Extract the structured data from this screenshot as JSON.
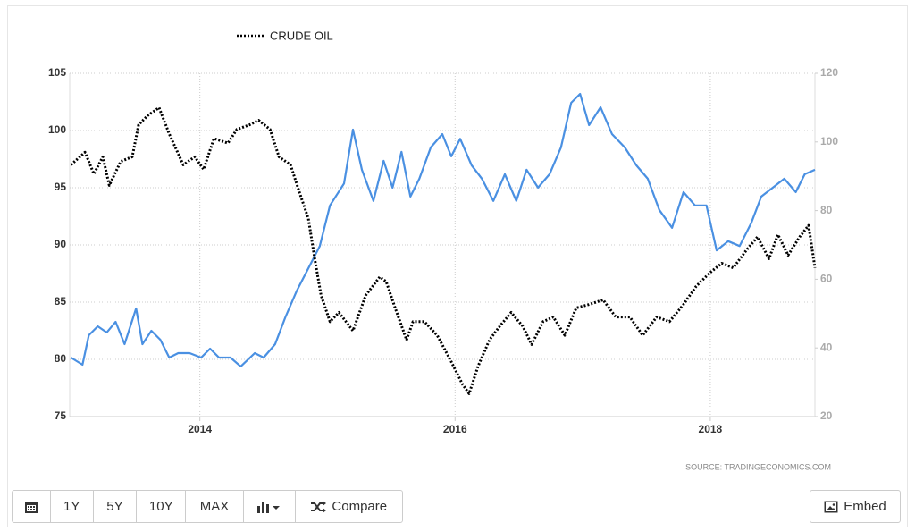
{
  "chart_data": {
    "type": "line",
    "source": "SOURCE: TRADINGECONOMICS.COM",
    "xlim": [
      2012.98,
      2018.82
    ],
    "xticks": [
      2014,
      2016,
      2018
    ],
    "ylim": [
      75,
      105
    ],
    "yticks": [
      75,
      80,
      85,
      90,
      95,
      100,
      105
    ],
    "y2lim": [
      20,
      120
    ],
    "y2ticks": [
      20,
      40,
      60,
      80,
      100,
      120
    ],
    "grid": true,
    "legend": "top",
    "series": [
      {
        "name": "CRUDE OIL",
        "color": "#000000",
        "style": "dotted",
        "x": [
          2012.99,
          2013.1,
          2013.17,
          2013.24,
          2013.29,
          2013.38,
          2013.47,
          2013.52,
          2013.59,
          2013.68,
          2013.76,
          2013.87,
          2013.96,
          2014.03,
          2014.11,
          2014.22,
          2014.29,
          2014.39,
          2014.46,
          2014.55,
          2014.62,
          2014.71,
          2014.78,
          2014.85,
          2014.9,
          2014.95,
          2015.02,
          2015.09,
          2015.2,
          2015.3,
          2015.41,
          2015.46,
          2015.53,
          2015.62,
          2015.67,
          2015.76,
          2015.86,
          2015.97,
          2016.06,
          2016.11,
          2016.18,
          2016.27,
          2016.35,
          2016.44,
          2016.53,
          2016.6,
          2016.69,
          2016.77,
          2016.86,
          2016.95,
          2017.05,
          2017.16,
          2017.26,
          2017.37,
          2017.47,
          2017.58,
          2017.68,
          2017.79,
          2017.89,
          2018.0,
          2018.09,
          2018.18,
          2018.28,
          2018.37,
          2018.46,
          2018.53,
          2018.61,
          2018.7,
          2018.77,
          2018.82
        ],
        "values": [
          97.0,
          98.1,
          96.2,
          97.7,
          95.2,
          97.3,
          97.7,
          100.5,
          101.3,
          102.0,
          99.7,
          97.0,
          97.7,
          96.6,
          99.3,
          98.9,
          100.1,
          100.5,
          100.9,
          100.1,
          97.7,
          97.0,
          94.6,
          92.3,
          88.8,
          85.6,
          83.3,
          84.1,
          82.5,
          85.6,
          87.2,
          86.8,
          84.5,
          81.7,
          83.3,
          83.3,
          82.1,
          79.8,
          77.8,
          77.0,
          79.4,
          81.7,
          82.9,
          84.1,
          82.9,
          81.3,
          83.3,
          83.7,
          82.1,
          84.5,
          84.8,
          85.2,
          83.7,
          83.7,
          82.1,
          83.7,
          83.3,
          84.8,
          86.4,
          87.6,
          88.4,
          88.0,
          89.5,
          90.7,
          88.8,
          90.9,
          89.1,
          90.7,
          91.7,
          88.0
        ]
      },
      {
        "color": "#4a90e2",
        "axis": "y2",
        "x": [
          2012.99,
          2013.08,
          2013.13,
          2013.2,
          2013.27,
          2013.34,
          2013.41,
          2013.5,
          2013.55,
          2013.62,
          2013.69,
          2013.76,
          2013.83,
          2013.92,
          2014.01,
          2014.08,
          2014.15,
          2014.24,
          2014.32,
          2014.43,
          2014.5,
          2014.59,
          2014.67,
          2014.76,
          2014.85,
          2014.94,
          2015.02,
          2015.13,
          2015.2,
          2015.27,
          2015.36,
          2015.44,
          2015.51,
          2015.58,
          2015.65,
          2015.72,
          2015.81,
          2015.9,
          2015.97,
          2016.04,
          2016.13,
          2016.21,
          2016.3,
          2016.39,
          2016.48,
          2016.56,
          2016.65,
          2016.74,
          2016.83,
          2016.91,
          2016.98,
          2017.05,
          2017.14,
          2017.23,
          2017.33,
          2017.42,
          2017.51,
          2017.6,
          2017.7,
          2017.79,
          2017.88,
          2017.97,
          2018.05,
          2018.14,
          2018.23,
          2018.32,
          2018.4,
          2018.49,
          2018.58,
          2018.67,
          2018.74,
          2018.82
        ],
        "values": [
          37.2,
          35.1,
          43.7,
          46.3,
          44.5,
          47.6,
          41.1,
          51.5,
          41.1,
          45.0,
          42.4,
          37.2,
          38.5,
          38.5,
          37.2,
          39.8,
          37.2,
          37.2,
          34.6,
          38.5,
          37.2,
          41.1,
          48.9,
          56.7,
          63.2,
          69.7,
          81.5,
          87.9,
          103.6,
          91.9,
          82.8,
          94.5,
          86.7,
          97.1,
          84.1,
          89.3,
          98.4,
          102.3,
          95.8,
          100.9,
          93.2,
          89.3,
          82.8,
          90.6,
          82.8,
          91.9,
          86.7,
          90.6,
          98.4,
          111.4,
          114.0,
          104.9,
          110.1,
          102.3,
          98.4,
          93.2,
          89.3,
          80.2,
          75.0,
          85.4,
          81.5,
          81.5,
          68.4,
          71.1,
          69.7,
          76.3,
          84.1,
          86.7,
          89.3,
          85.4,
          90.6,
          91.9
        ]
      }
    ]
  },
  "toolbar": {
    "buttons": [
      "1Y",
      "5Y",
      "10Y",
      "MAX"
    ],
    "compare": "Compare",
    "embed": "Embed"
  }
}
